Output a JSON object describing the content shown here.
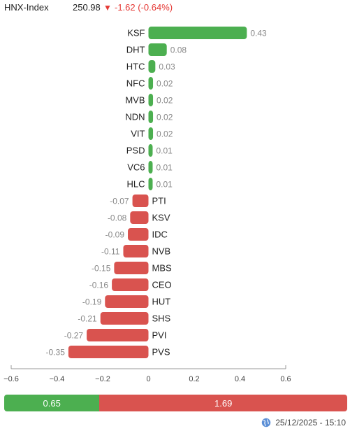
{
  "header": {
    "index_name": "HNX-Index",
    "index_value": "250.98",
    "change_arrow": "▼",
    "change_text": "-1.62 (-0.64%)"
  },
  "chart_data": {
    "type": "bar",
    "orientation": "horizontal",
    "title": "",
    "xlabel": "",
    "ylabel": "",
    "xlim": [
      -0.6,
      0.6
    ],
    "x_ticks": [
      -0.6,
      -0.4,
      -0.2,
      0,
      0.2,
      0.4,
      0.6
    ],
    "x_tick_labels": [
      "−0.6",
      "−0.4",
      "−0.2",
      "0",
      "0.2",
      "0.4",
      "0.6"
    ],
    "grid": false,
    "categories": [
      "KSF",
      "DHT",
      "HTC",
      "NFC",
      "MVB",
      "NDN",
      "VIT",
      "PSD",
      "VC6",
      "HLC",
      "PTI",
      "KSV",
      "IDC",
      "NVB",
      "MBS",
      "CEO",
      "HUT",
      "SHS",
      "PVI",
      "PVS"
    ],
    "values": [
      0.43,
      0.08,
      0.03,
      0.02,
      0.02,
      0.02,
      0.02,
      0.01,
      0.01,
      0.01,
      -0.07,
      -0.08,
      -0.09,
      -0.11,
      -0.15,
      -0.16,
      -0.19,
      -0.21,
      -0.27,
      -0.35
    ],
    "value_labels": [
      "0.43",
      "0.08",
      "0.03",
      "0.02",
      "0.02",
      "0.02",
      "0.02",
      "0.01",
      "0.01",
      "0.01",
      "-0.07",
      "-0.08",
      "-0.09",
      "-0.11",
      "-0.15",
      "-0.16",
      "-0.19",
      "-0.21",
      "-0.27",
      "-0.35"
    ],
    "colors": {
      "positive": "#4caf50",
      "negative": "#d9534f"
    }
  },
  "summary": {
    "advance_value": 0.65,
    "advance_label": "0.65",
    "decline_value": 1.69,
    "decline_label": "1.69",
    "advance_color": "#4caf50",
    "decline_color": "#d9534f"
  },
  "footer": {
    "icon": "globe-icon",
    "timestamp": "25/12/2025 - 15:10"
  }
}
